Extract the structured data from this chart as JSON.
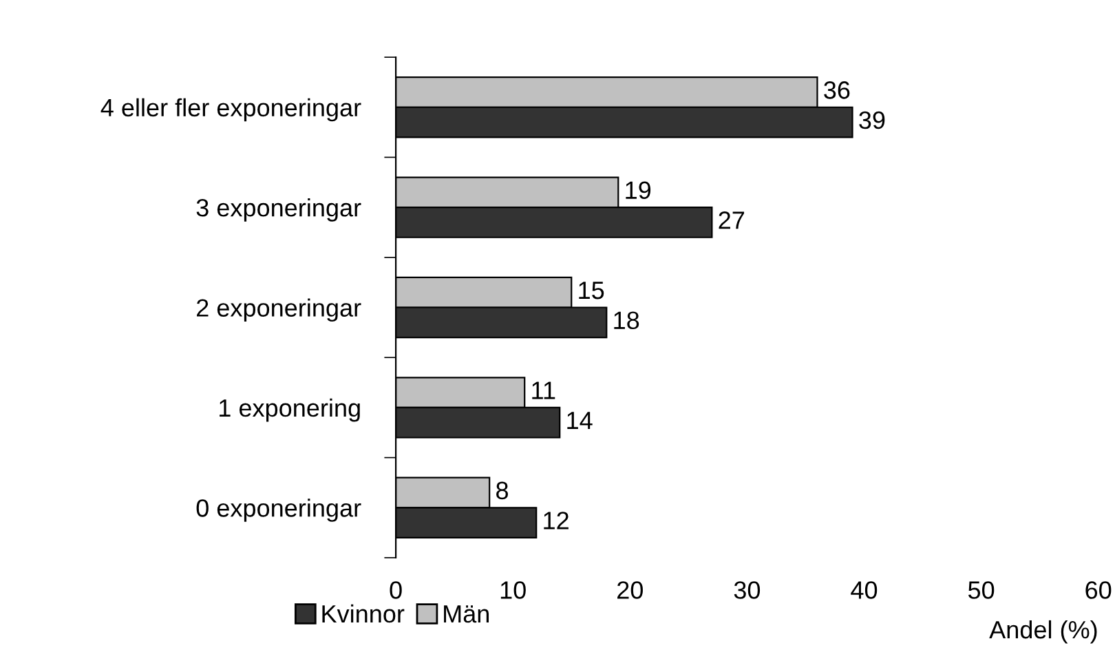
{
  "chart_data": {
    "type": "bar",
    "orientation": "horizontal",
    "categories": [
      "4 eller fler exponeringar",
      "3 exponeringar",
      "2 exponeringar",
      "1 exponering",
      "0 exponeringar"
    ],
    "series": [
      {
        "name": "Män",
        "color": "#c0c0c0",
        "values": [
          36,
          19,
          15,
          11,
          8
        ]
      },
      {
        "name": "Kvinnor",
        "color": "#333333",
        "values": [
          39,
          27,
          18,
          14,
          12
        ]
      }
    ],
    "xlabel": "Andel (%)",
    "xlim": [
      0,
      60
    ],
    "xticks": [
      0,
      10,
      20,
      30,
      40,
      50,
      60
    ],
    "data_labels": true,
    "grid": false,
    "legend": "bottom left"
  }
}
